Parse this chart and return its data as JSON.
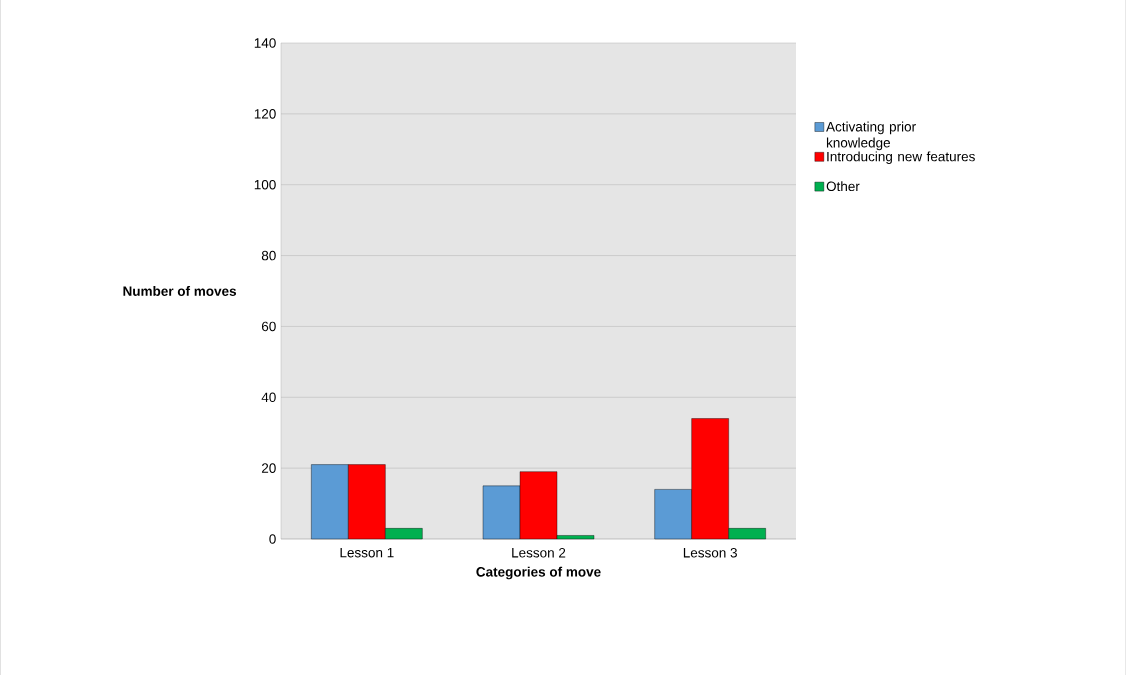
{
  "chart_data": {
    "type": "bar",
    "xlabel": "Categories of move",
    "ylabel": "Number of moves",
    "categories": [
      "Lesson 1",
      "Lesson 2",
      "Lesson 3"
    ],
    "series": [
      {
        "name": "Activating prior knowledge",
        "color": "#5b9bd5",
        "values": [
          21,
          15,
          14
        ]
      },
      {
        "name": "Introducing new features",
        "color": "#ff0000",
        "values": [
          21,
          19,
          34
        ]
      },
      {
        "name": "Other",
        "color": "#00b050",
        "values": [
          3,
          1,
          3
        ]
      }
    ],
    "ylim": [
      0,
      140
    ],
    "yticks": [
      0,
      20,
      40,
      60,
      80,
      100,
      120,
      140
    ],
    "grid": "y",
    "legend": "right"
  }
}
